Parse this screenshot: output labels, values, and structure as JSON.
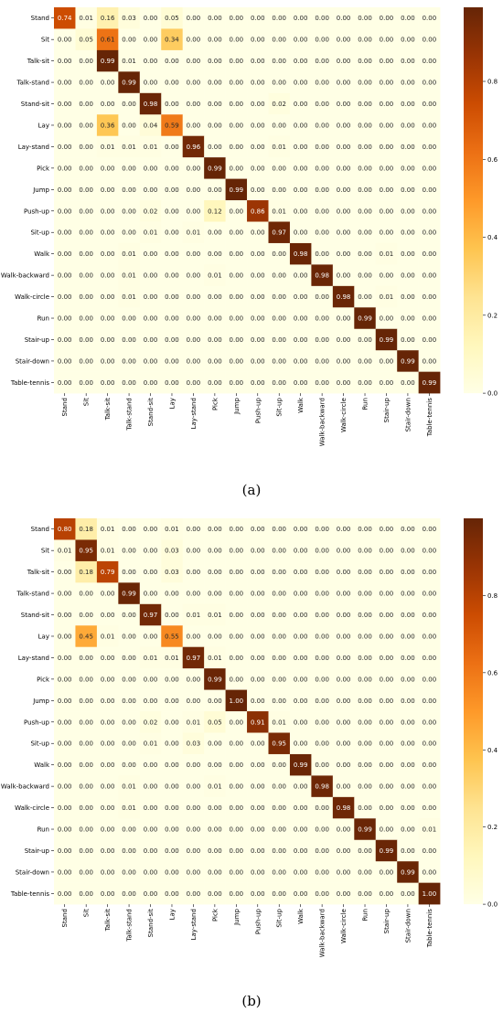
{
  "captions": [
    "(a)",
    "(b)"
  ],
  "colorbar": {
    "ticks": [
      0.0,
      0.2,
      0.4,
      0.6,
      0.8
    ],
    "tick_labels": [
      "0.0",
      "0.2",
      "0.4",
      "0.6",
      "0.8"
    ],
    "colormap": "YlOrBr"
  },
  "chart_data": [
    {
      "type": "heatmap",
      "caption": "(a)",
      "title": "",
      "xlabel": "",
      "ylabel": "",
      "vmin": 0.0,
      "vmax": 0.99,
      "labels": [
        "Stand",
        "Sit",
        "Talk-sit",
        "Talk-stand",
        "Stand-sit",
        "Lay",
        "Lay-stand",
        "Pick",
        "Jump",
        "Push-up",
        "Sit-up",
        "Walk",
        "Walk-backward",
        "Walk-circle",
        "Run",
        "Stair-up",
        "Stair-down",
        "Table-tennis"
      ],
      "matrix": [
        [
          0.74,
          0.01,
          0.16,
          0.03,
          0.0,
          0.05,
          0.0,
          0.0,
          0.0,
          0.0,
          0.0,
          0.0,
          0.0,
          0.0,
          0.0,
          0.0,
          0.0,
          0.0
        ],
        [
          0.0,
          0.05,
          0.61,
          0.0,
          0.0,
          0.34,
          0.0,
          0.0,
          0.0,
          0.0,
          0.0,
          0.0,
          0.0,
          0.0,
          0.0,
          0.0,
          0.0,
          0.0
        ],
        [
          0.0,
          0.0,
          0.99,
          0.01,
          0.0,
          0.0,
          0.0,
          0.0,
          0.0,
          0.0,
          0.0,
          0.0,
          0.0,
          0.0,
          0.0,
          0.0,
          0.0,
          0.0
        ],
        [
          0.0,
          0.0,
          0.0,
          0.99,
          0.0,
          0.0,
          0.0,
          0.0,
          0.0,
          0.0,
          0.0,
          0.0,
          0.0,
          0.0,
          0.0,
          0.0,
          0.0,
          0.0
        ],
        [
          0.0,
          0.0,
          0.0,
          0.0,
          0.98,
          0.0,
          0.0,
          0.0,
          0.0,
          0.0,
          0.02,
          0.0,
          0.0,
          0.0,
          0.0,
          0.0,
          0.0,
          0.0
        ],
        [
          0.0,
          0.0,
          0.36,
          0.0,
          0.04,
          0.59,
          0.0,
          0.0,
          0.0,
          0.0,
          0.0,
          0.0,
          0.0,
          0.0,
          0.0,
          0.0,
          0.0,
          0.0
        ],
        [
          0.0,
          0.0,
          0.01,
          0.01,
          0.01,
          0.0,
          0.96,
          0.0,
          0.0,
          0.0,
          0.01,
          0.0,
          0.0,
          0.0,
          0.0,
          0.0,
          0.0,
          0.0
        ],
        [
          0.0,
          0.0,
          0.0,
          0.0,
          0.0,
          0.0,
          0.0,
          0.99,
          0.0,
          0.0,
          0.0,
          0.0,
          0.0,
          0.0,
          0.0,
          0.0,
          0.0,
          0.0
        ],
        [
          0.0,
          0.0,
          0.0,
          0.0,
          0.0,
          0.0,
          0.0,
          0.0,
          0.99,
          0.0,
          0.0,
          0.0,
          0.0,
          0.0,
          0.0,
          0.0,
          0.0,
          0.0
        ],
        [
          0.0,
          0.0,
          0.0,
          0.0,
          0.02,
          0.0,
          0.0,
          0.12,
          0.0,
          0.86,
          0.01,
          0.0,
          0.0,
          0.0,
          0.0,
          0.0,
          0.0,
          0.0
        ],
        [
          0.0,
          0.0,
          0.0,
          0.0,
          0.01,
          0.0,
          0.01,
          0.0,
          0.0,
          0.0,
          0.97,
          0.0,
          0.0,
          0.0,
          0.0,
          0.0,
          0.0,
          0.0
        ],
        [
          0.0,
          0.0,
          0.0,
          0.01,
          0.0,
          0.0,
          0.0,
          0.0,
          0.0,
          0.0,
          0.0,
          0.98,
          0.0,
          0.0,
          0.0,
          0.01,
          0.0,
          0.0
        ],
        [
          0.0,
          0.0,
          0.0,
          0.01,
          0.0,
          0.0,
          0.0,
          0.01,
          0.0,
          0.0,
          0.0,
          0.0,
          0.98,
          0.0,
          0.0,
          0.0,
          0.0,
          0.0
        ],
        [
          0.0,
          0.0,
          0.0,
          0.01,
          0.0,
          0.0,
          0.0,
          0.0,
          0.0,
          0.0,
          0.0,
          0.0,
          0.0,
          0.98,
          0.0,
          0.01,
          0.0,
          0.0
        ],
        [
          0.0,
          0.0,
          0.0,
          0.0,
          0.0,
          0.0,
          0.0,
          0.0,
          0.0,
          0.0,
          0.0,
          0.0,
          0.0,
          0.0,
          0.99,
          0.0,
          0.0,
          0.0
        ],
        [
          0.0,
          0.0,
          0.0,
          0.0,
          0.0,
          0.0,
          0.0,
          0.0,
          0.0,
          0.0,
          0.0,
          0.0,
          0.0,
          0.0,
          0.0,
          0.99,
          0.0,
          0.0
        ],
        [
          0.0,
          0.0,
          0.0,
          0.0,
          0.0,
          0.0,
          0.0,
          0.0,
          0.0,
          0.0,
          0.0,
          0.0,
          0.0,
          0.0,
          0.0,
          0.0,
          0.99,
          0.0
        ],
        [
          0.0,
          0.0,
          0.0,
          0.0,
          0.0,
          0.0,
          0.0,
          0.0,
          0.0,
          0.0,
          0.0,
          0.0,
          0.0,
          0.0,
          0.0,
          0.0,
          0.0,
          0.99
        ]
      ]
    },
    {
      "type": "heatmap",
      "caption": "(b)",
      "title": "",
      "xlabel": "",
      "ylabel": "",
      "vmin": 0.0,
      "vmax": 1.0,
      "labels": [
        "Stand",
        "Sit",
        "Talk-sit",
        "Talk-stand",
        "Stand-sit",
        "Lay",
        "Lay-stand",
        "Pick",
        "Jump",
        "Push-up",
        "Sit-up",
        "Walk",
        "Walk-backward",
        "Walk-circle",
        "Run",
        "Stair-up",
        "Stair-down",
        "Table-tennis"
      ],
      "matrix": [
        [
          0.8,
          0.18,
          0.01,
          0.0,
          0.0,
          0.01,
          0.0,
          0.0,
          0.0,
          0.0,
          0.0,
          0.0,
          0.0,
          0.0,
          0.0,
          0.0,
          0.0,
          0.0
        ],
        [
          0.01,
          0.95,
          0.01,
          0.0,
          0.0,
          0.03,
          0.0,
          0.0,
          0.0,
          0.0,
          0.0,
          0.0,
          0.0,
          0.0,
          0.0,
          0.0,
          0.0,
          0.0
        ],
        [
          0.0,
          0.18,
          0.79,
          0.0,
          0.0,
          0.03,
          0.0,
          0.0,
          0.0,
          0.0,
          0.0,
          0.0,
          0.0,
          0.0,
          0.0,
          0.0,
          0.0,
          0.0
        ],
        [
          0.0,
          0.0,
          0.0,
          0.99,
          0.0,
          0.0,
          0.0,
          0.0,
          0.0,
          0.0,
          0.0,
          0.0,
          0.0,
          0.0,
          0.0,
          0.0,
          0.0,
          0.0
        ],
        [
          0.0,
          0.0,
          0.0,
          0.0,
          0.97,
          0.0,
          0.01,
          0.01,
          0.0,
          0.0,
          0.0,
          0.0,
          0.0,
          0.0,
          0.0,
          0.0,
          0.0,
          0.0
        ],
        [
          0.0,
          0.45,
          0.01,
          0.0,
          0.0,
          0.55,
          0.0,
          0.0,
          0.0,
          0.0,
          0.0,
          0.0,
          0.0,
          0.0,
          0.0,
          0.0,
          0.0,
          0.0
        ],
        [
          0.0,
          0.0,
          0.0,
          0.0,
          0.01,
          0.01,
          0.97,
          0.01,
          0.0,
          0.0,
          0.0,
          0.0,
          0.0,
          0.0,
          0.0,
          0.0,
          0.0,
          0.0
        ],
        [
          0.0,
          0.0,
          0.0,
          0.0,
          0.0,
          0.0,
          0.0,
          0.99,
          0.0,
          0.0,
          0.0,
          0.0,
          0.0,
          0.0,
          0.0,
          0.0,
          0.0,
          0.0
        ],
        [
          0.0,
          0.0,
          0.0,
          0.0,
          0.0,
          0.0,
          0.0,
          0.0,
          1.0,
          0.0,
          0.0,
          0.0,
          0.0,
          0.0,
          0.0,
          0.0,
          0.0,
          0.0
        ],
        [
          0.0,
          0.0,
          0.0,
          0.0,
          0.02,
          0.0,
          0.01,
          0.05,
          0.0,
          0.91,
          0.01,
          0.0,
          0.0,
          0.0,
          0.0,
          0.0,
          0.0,
          0.0
        ],
        [
          0.0,
          0.0,
          0.0,
          0.0,
          0.01,
          0.0,
          0.03,
          0.0,
          0.0,
          0.0,
          0.95,
          0.0,
          0.0,
          0.0,
          0.0,
          0.0,
          0.0,
          0.0
        ],
        [
          0.0,
          0.0,
          0.0,
          0.0,
          0.0,
          0.0,
          0.0,
          0.0,
          0.0,
          0.0,
          0.0,
          0.99,
          0.0,
          0.0,
          0.0,
          0.0,
          0.0,
          0.0
        ],
        [
          0.0,
          0.0,
          0.0,
          0.01,
          0.0,
          0.0,
          0.0,
          0.01,
          0.0,
          0.0,
          0.0,
          0.0,
          0.98,
          0.0,
          0.0,
          0.0,
          0.0,
          0.0
        ],
        [
          0.0,
          0.0,
          0.0,
          0.01,
          0.0,
          0.0,
          0.0,
          0.0,
          0.0,
          0.0,
          0.0,
          0.0,
          0.0,
          0.98,
          0.0,
          0.0,
          0.0,
          0.0
        ],
        [
          0.0,
          0.0,
          0.0,
          0.0,
          0.0,
          0.0,
          0.0,
          0.0,
          0.0,
          0.0,
          0.0,
          0.0,
          0.0,
          0.0,
          0.99,
          0.0,
          0.0,
          0.01
        ],
        [
          0.0,
          0.0,
          0.0,
          0.0,
          0.0,
          0.0,
          0.0,
          0.0,
          0.0,
          0.0,
          0.0,
          0.0,
          0.0,
          0.0,
          0.0,
          0.99,
          0.0,
          0.0
        ],
        [
          0.0,
          0.0,
          0.0,
          0.0,
          0.0,
          0.0,
          0.0,
          0.0,
          0.0,
          0.0,
          0.0,
          0.0,
          0.0,
          0.0,
          0.0,
          0.0,
          0.99,
          0.0
        ],
        [
          0.0,
          0.0,
          0.0,
          0.0,
          0.0,
          0.0,
          0.0,
          0.0,
          0.0,
          0.0,
          0.0,
          0.0,
          0.0,
          0.0,
          0.0,
          0.0,
          0.0,
          1.0
        ]
      ]
    }
  ]
}
